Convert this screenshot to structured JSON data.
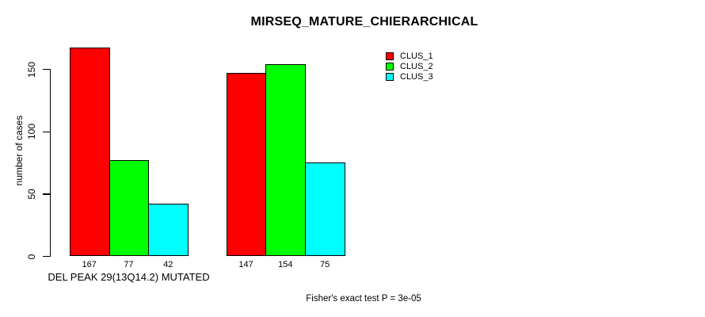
{
  "chart_data": {
    "type": "bar",
    "title": "MIRSEQ_MATURE_CHIERARCHICAL",
    "ylabel": "number of cases",
    "xlabel": "",
    "yticks": [
      0,
      50,
      100,
      150
    ],
    "ylim": [
      0,
      167
    ],
    "grid": false,
    "legend_position": "top-right",
    "background_color": "#ffffff",
    "bar_border_color": "#000000",
    "series": [
      {
        "name": "CLUS_1",
        "color": "#ff0000"
      },
      {
        "name": "CLUS_2",
        "color": "#00ff00"
      },
      {
        "name": "CLUS_3",
        "color": "#00ffff"
      }
    ],
    "groups": [
      {
        "label": "DEL PEAK 29(13Q14.2) MUTATED",
        "values": [
          167,
          77,
          42
        ]
      },
      {
        "label": "",
        "values": [
          147,
          154,
          75
        ]
      }
    ],
    "footnote": "Fisher's exact test P = 3e-05"
  }
}
